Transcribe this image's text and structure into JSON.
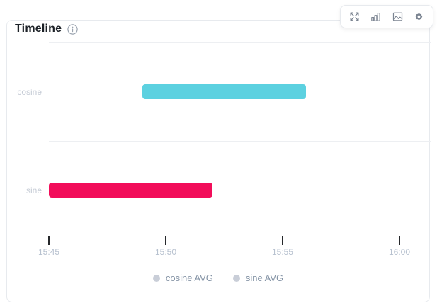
{
  "panel": {
    "title": "Timeline",
    "info_icon": "info-icon"
  },
  "toolbar": {
    "icons": [
      {
        "name": "expand-icon"
      },
      {
        "name": "bar-chart-icon"
      },
      {
        "name": "image-icon"
      },
      {
        "name": "gear-icon"
      }
    ]
  },
  "chart_data": {
    "type": "timeline",
    "title": "Timeline",
    "x_range": [
      "15:45:00",
      "16:01:20"
    ],
    "x_ticks": [
      "15:45",
      "15:50",
      "15:55",
      "16:00"
    ],
    "grid": "horizontal",
    "rows": [
      {
        "label": "cosine",
        "start": "15:49:00",
        "end": "15:56:00",
        "color": "#5CD1E0"
      },
      {
        "label": "sine",
        "start": "15:45:00",
        "end": "15:52:00",
        "color": "#F20D5A"
      }
    ],
    "legend": {
      "position": "bottom",
      "items": [
        {
          "label": "cosine AVG",
          "dot_color": "#C9CED8"
        },
        {
          "label": "sine AVG",
          "dot_color": "#C9CED8"
        }
      ]
    }
  }
}
